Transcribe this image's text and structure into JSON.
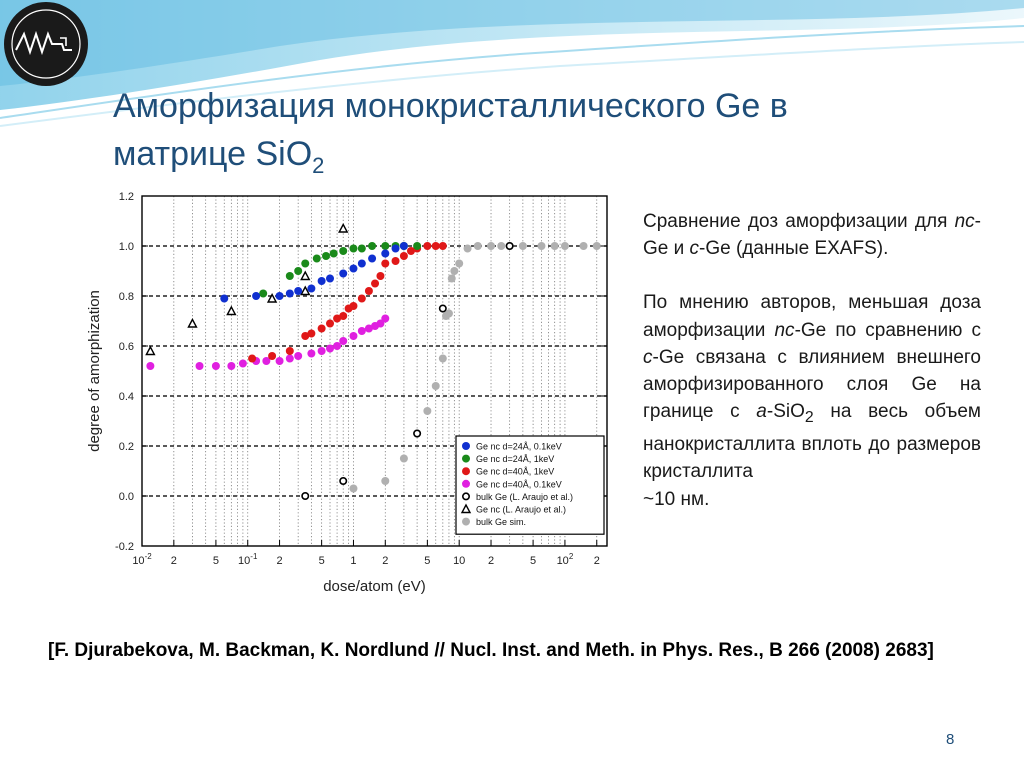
{
  "slide": {
    "title_line1": "Аморфизация монокристаллического Ge в",
    "title_line2": "матрице SiO",
    "title_sub": "2",
    "side_text": {
      "p1": [
        "Сравнение доз аморфизации",
        "для ",
        "nc",
        "-Ge и ",
        "c",
        "-Ge (данные EXAFS)."
      ],
      "p2": [
        "По мнению авторов, меньшая доза аморфизации ",
        "nc",
        "-Ge по сравнению с ",
        "c",
        "-Ge связана с влиянием внешнего аморфизированного слоя Ge на границе с ",
        "a",
        "-SiO",
        "2",
        " на весь объем нанокристаллита вплоть до размеров кристаллита",
        "~10 нм."
      ]
    },
    "reference": "[F. Djurabekova, M. Backman, K. Nordlund // Nucl. Inst. and Meth. in Phys. Res., B 266 (2008) 2683]",
    "page_number": "8",
    "colors": {
      "title": "#1f4e79",
      "blue": "#1030d0",
      "green": "#1a8a1a",
      "red": "#e01818",
      "magenta": "#e020e0",
      "gray": "#b0b0b0"
    },
    "icons": [
      "logo-icon"
    ]
  },
  "chart_data": {
    "type": "scatter",
    "xscale": "log",
    "xlabel": "dose/atom (eV)",
    "ylabel": "degree of amorphization",
    "xlim": [
      0.01,
      250
    ],
    "ylim": [
      -0.2,
      1.2
    ],
    "xticks": [
      {
        "v": 0.01,
        "lab": "10",
        "sup": "-2"
      },
      {
        "v": 0.02,
        "lab": "2"
      },
      {
        "v": 0.05,
        "lab": "5"
      },
      {
        "v": 0.1,
        "lab": "10",
        "sup": "-1"
      },
      {
        "v": 0.2,
        "lab": "2"
      },
      {
        "v": 0.5,
        "lab": "5"
      },
      {
        "v": 1,
        "lab": "1"
      },
      {
        "v": 2,
        "lab": "2"
      },
      {
        "v": 5,
        "lab": "5"
      },
      {
        "v": 10,
        "lab": "10"
      },
      {
        "v": 20,
        "lab": "2"
      },
      {
        "v": 50,
        "lab": "5"
      },
      {
        "v": 100,
        "lab": "10",
        "sup": "2"
      },
      {
        "v": 200,
        "lab": "2"
      }
    ],
    "yticks": [
      -0.2,
      0.0,
      0.2,
      0.4,
      0.6,
      0.8,
      1.0,
      1.2
    ],
    "grid": true,
    "legend_position": "bottom-right",
    "series": [
      {
        "name": "Ge nc d=24Å, 0.1keV",
        "color": "#1030d0",
        "marker": "dot",
        "x": [
          0.06,
          0.12,
          0.2,
          0.25,
          0.3,
          0.4,
          0.5,
          0.6,
          0.8,
          1.0,
          1.2,
          1.5,
          2.0,
          2.5,
          3.0
        ],
        "y": [
          0.79,
          0.8,
          0.8,
          0.81,
          0.82,
          0.83,
          0.86,
          0.87,
          0.89,
          0.91,
          0.93,
          0.95,
          0.97,
          0.99,
          1.0
        ]
      },
      {
        "name": "Ge nc d=24Å, 1keV",
        "color": "#1a8a1a",
        "marker": "dot",
        "x": [
          0.14,
          0.25,
          0.3,
          0.35,
          0.45,
          0.55,
          0.65,
          0.8,
          1.0,
          1.2,
          1.5,
          2.0,
          2.5,
          3.0,
          4.0
        ],
        "y": [
          0.81,
          0.88,
          0.9,
          0.93,
          0.95,
          0.96,
          0.97,
          0.98,
          0.99,
          0.99,
          1.0,
          1.0,
          1.0,
          1.0,
          1.0
        ]
      },
      {
        "name": "Ge nc d=40Å, 1keV",
        "color": "#e01818",
        "marker": "dot",
        "x": [
          0.11,
          0.17,
          0.25,
          0.35,
          0.4,
          0.5,
          0.6,
          0.7,
          0.8,
          0.9,
          1.0,
          1.2,
          1.4,
          1.6,
          1.8,
          2.0,
          2.5,
          3.0,
          3.5,
          4.0,
          5.0,
          6.0,
          7.0
        ],
        "y": [
          0.55,
          0.56,
          0.58,
          0.64,
          0.65,
          0.67,
          0.69,
          0.71,
          0.72,
          0.75,
          0.76,
          0.79,
          0.82,
          0.85,
          0.88,
          0.93,
          0.94,
          0.96,
          0.98,
          0.99,
          1.0,
          1.0,
          1.0
        ]
      },
      {
        "name": "Ge nc d=40Å, 0.1keV",
        "color": "#e020e0",
        "marker": "dot",
        "x": [
          0.012,
          0.035,
          0.05,
          0.07,
          0.09,
          0.12,
          0.15,
          0.2,
          0.25,
          0.3,
          0.4,
          0.5,
          0.6,
          0.7,
          0.8,
          1.0,
          1.2,
          1.4,
          1.6,
          1.8,
          2.0
        ],
        "y": [
          0.52,
          0.52,
          0.52,
          0.52,
          0.53,
          0.54,
          0.54,
          0.54,
          0.55,
          0.56,
          0.57,
          0.58,
          0.59,
          0.6,
          0.62,
          0.64,
          0.66,
          0.67,
          0.68,
          0.69,
          0.71
        ]
      },
      {
        "name": "bulk Ge (L. Araujo et al.)",
        "color": "#000000",
        "marker": "circle",
        "x": [
          0.35,
          0.8,
          4.0,
          7.0,
          30
        ],
        "y": [
          0.0,
          0.06,
          0.25,
          0.75,
          1.0
        ]
      },
      {
        "name": "Ge nc (L. Araujo et al.)",
        "color": "#000000",
        "marker": "triangle",
        "x": [
          0.012,
          0.03,
          0.07,
          0.17,
          0.35,
          0.35,
          0.8
        ],
        "y": [
          0.58,
          0.69,
          0.74,
          0.79,
          0.82,
          0.88,
          1.07
        ]
      },
      {
        "name": "bulk Ge sim.",
        "color": "#b0b0b0",
        "marker": "dot",
        "x": [
          1.0,
          2.0,
          3.0,
          4.0,
          5.0,
          6.0,
          7.0,
          7.5,
          8.0,
          8.5,
          9.0,
          10.0,
          12.0,
          15.0,
          20.0,
          25.0,
          30.0,
          40.0,
          60.0,
          80.0,
          100.0,
          150.0,
          200.0
        ],
        "y": [
          0.03,
          0.06,
          0.15,
          0.25,
          0.34,
          0.44,
          0.55,
          0.72,
          0.73,
          0.87,
          0.9,
          0.93,
          0.99,
          1.0,
          1.0,
          1.0,
          1.0,
          1.0,
          1.0,
          1.0,
          1.0,
          1.0,
          1.0
        ]
      }
    ]
  }
}
